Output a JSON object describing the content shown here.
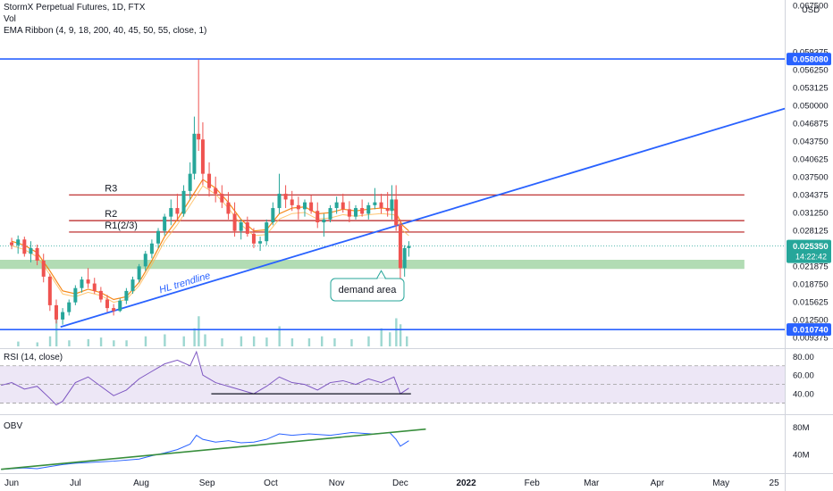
{
  "header": {
    "symbol_line": "StormX Perpetual Futures, 1D, FTX",
    "vol_label": "Vol",
    "ema_label": "EMA Ribbon (4, 9, 18, 200, 40, 45, 50, 55, close, 1)"
  },
  "colors": {
    "blue_line": "#2962ff",
    "resistance": "#b71c1c",
    "demand_zone": "#a5d6a7",
    "candle_up": "#26a69a",
    "candle_down": "#ef5350",
    "ema": "#f57c00",
    "rsi_line": "#7e57c2",
    "rsi_band": "#ede7f6",
    "obv_line": "#2962ff",
    "obv_trend": "#388e3c",
    "demand_box": "#26a69a",
    "axis_text": "#131722"
  },
  "icons": [
    "callout-pointer"
  ],
  "chart_data": [
    {
      "type": "candlestick",
      "price_axis_ticks": [
        "0.067500",
        "0.059375",
        "0.056250",
        "0.053125",
        "0.050000",
        "0.046875",
        "0.043750",
        "0.040625",
        "0.037500",
        "0.034375",
        "0.031250",
        "0.028125",
        "0.021875",
        "0.018750",
        "0.015625",
        "0.012500",
        "0.009375"
      ],
      "price_axis_unit": "USD",
      "ylim": [
        0.0078,
        0.0684
      ],
      "time_axis_labels": [
        "Jun",
        "Jul",
        "Aug",
        "Sep",
        "Oct",
        "Nov",
        "Dec",
        "2022",
        "Feb",
        "Mar",
        "Apr",
        "May",
        "25"
      ],
      "time_axis_positions": [
        0,
        30,
        61,
        92,
        122,
        153,
        183,
        214,
        245,
        273,
        304,
        334,
        359
      ],
      "xlim": [
        -5.5,
        364
      ],
      "current_price": "0.025350",
      "countdown": "14:22:42",
      "levels": [
        {
          "label": "0.058080",
          "price": 0.05808,
          "style": "blue"
        },
        {
          "label": "0.010740",
          "price": 0.01074,
          "style": "blue"
        }
      ],
      "resistance_lines": [
        {
          "label": "R3",
          "price": 0.0343,
          "x_start": 27,
          "x_end": 345
        },
        {
          "label": "R2",
          "price": 0.0298,
          "x_start": 27,
          "x_end": 345
        },
        {
          "label": "R1(2/3)",
          "price": 0.0278,
          "x_start": 27,
          "x_end": 345
        }
      ],
      "demand_zone": {
        "price_low": 0.02135,
        "price_high": 0.02295,
        "x_start": -5.5,
        "x_end": 345
      },
      "demand_label": "demand area",
      "trendline": {
        "label": "HL trendline",
        "points": [
          [
            23,
            0.0112
          ],
          [
            364,
            0.0494
          ]
        ]
      },
      "ohlc": [
        [
          0,
          0.026,
          0.0268,
          0.0248,
          0.0255
        ],
        [
          3,
          0.0255,
          0.0272,
          0.024,
          0.0265
        ],
        [
          6,
          0.0265,
          0.027,
          0.0235,
          0.024
        ],
        [
          9,
          0.024,
          0.0262,
          0.0225,
          0.025
        ],
        [
          12,
          0.025,
          0.0256,
          0.022,
          0.0228
        ],
        [
          15,
          0.0228,
          0.024,
          0.019,
          0.02
        ],
        [
          18,
          0.02,
          0.0205,
          0.014,
          0.015
        ],
        [
          21,
          0.015,
          0.016,
          0.0118,
          0.0125
        ],
        [
          24,
          0.0125,
          0.0145,
          0.0116,
          0.0138
        ],
        [
          27,
          0.0138,
          0.016,
          0.0132,
          0.0155
        ],
        [
          30,
          0.0155,
          0.0185,
          0.015,
          0.018
        ],
        [
          33,
          0.018,
          0.02,
          0.0172,
          0.0195
        ],
        [
          36,
          0.0195,
          0.0215,
          0.018,
          0.0188
        ],
        [
          39,
          0.0188,
          0.0198,
          0.017,
          0.0175
        ],
        [
          42,
          0.0175,
          0.0182,
          0.0155,
          0.016
        ],
        [
          45,
          0.016,
          0.0168,
          0.0138,
          0.0145
        ],
        [
          48,
          0.0145,
          0.0152,
          0.0132,
          0.014
        ],
        [
          51,
          0.014,
          0.0162,
          0.0138,
          0.0158
        ],
        [
          54,
          0.0158,
          0.018,
          0.0152,
          0.0175
        ],
        [
          57,
          0.0175,
          0.02,
          0.017,
          0.0195
        ],
        [
          60,
          0.0195,
          0.0222,
          0.019,
          0.0218
        ],
        [
          63,
          0.0218,
          0.0245,
          0.021,
          0.024
        ],
        [
          66,
          0.024,
          0.0265,
          0.0232,
          0.0258
        ],
        [
          69,
          0.0258,
          0.0285,
          0.025,
          0.028
        ],
        [
          72,
          0.028,
          0.031,
          0.0272,
          0.0305
        ],
        [
          75,
          0.0305,
          0.0335,
          0.029,
          0.032
        ],
        [
          78,
          0.032,
          0.0345,
          0.03,
          0.031
        ],
        [
          81,
          0.031,
          0.036,
          0.0305,
          0.035
        ],
        [
          84,
          0.035,
          0.04,
          0.0335,
          0.038
        ],
        [
          86,
          0.038,
          0.048,
          0.037,
          0.045
        ],
        [
          88,
          0.045,
          0.058,
          0.042,
          0.044
        ],
        [
          90,
          0.044,
          0.047,
          0.036,
          0.038
        ],
        [
          93,
          0.038,
          0.04,
          0.034,
          0.0355
        ],
        [
          96,
          0.0355,
          0.0375,
          0.033,
          0.0345
        ],
        [
          99,
          0.0345,
          0.036,
          0.032,
          0.033
        ],
        [
          102,
          0.033,
          0.0348,
          0.03,
          0.031
        ],
        [
          105,
          0.031,
          0.033,
          0.027,
          0.028
        ],
        [
          108,
          0.028,
          0.03,
          0.0265,
          0.0295
        ],
        [
          111,
          0.0295,
          0.0305,
          0.027,
          0.0275
        ],
        [
          114,
          0.0275,
          0.0285,
          0.025,
          0.0258
        ],
        [
          117,
          0.0258,
          0.027,
          0.0245,
          0.0262
        ],
        [
          120,
          0.0262,
          0.03,
          0.0255,
          0.0295
        ],
        [
          123,
          0.0295,
          0.033,
          0.029,
          0.032
        ],
        [
          126,
          0.032,
          0.038,
          0.031,
          0.0345
        ],
        [
          129,
          0.0345,
          0.036,
          0.032,
          0.0335
        ],
        [
          132,
          0.0335,
          0.035,
          0.0315,
          0.0325
        ],
        [
          135,
          0.0325,
          0.034,
          0.03,
          0.0318
        ],
        [
          138,
          0.0318,
          0.0335,
          0.0305,
          0.033
        ],
        [
          141,
          0.033,
          0.0342,
          0.031,
          0.0315
        ],
        [
          144,
          0.0315,
          0.033,
          0.0285,
          0.0295
        ],
        [
          147,
          0.0295,
          0.031,
          0.027,
          0.03
        ],
        [
          150,
          0.03,
          0.0325,
          0.0295,
          0.032
        ],
        [
          153,
          0.032,
          0.034,
          0.031,
          0.033
        ],
        [
          156,
          0.033,
          0.0345,
          0.0312,
          0.0318
        ],
        [
          159,
          0.0318,
          0.0332,
          0.0295,
          0.0305
        ],
        [
          162,
          0.0305,
          0.0325,
          0.03,
          0.032
        ],
        [
          165,
          0.032,
          0.0335,
          0.0305,
          0.031
        ],
        [
          168,
          0.031,
          0.033,
          0.03,
          0.0325
        ],
        [
          171,
          0.0325,
          0.0355,
          0.0318,
          0.033
        ],
        [
          174,
          0.033,
          0.0345,
          0.031,
          0.032
        ],
        [
          177,
          0.032,
          0.0348,
          0.0305,
          0.0315
        ],
        [
          179,
          0.0315,
          0.036,
          0.03,
          0.0335
        ],
        [
          181,
          0.0335,
          0.036,
          0.028,
          0.029
        ],
        [
          183,
          0.029,
          0.03,
          0.0185,
          0.0215
        ],
        [
          185,
          0.0215,
          0.0255,
          0.02,
          0.025
        ],
        [
          187,
          0.025,
          0.0262,
          0.0235,
          0.02535
        ]
      ],
      "ema": [
        [
          0,
          0.0262
        ],
        [
          6,
          0.0255
        ],
        [
          12,
          0.0242
        ],
        [
          18,
          0.021
        ],
        [
          24,
          0.0175
        ],
        [
          30,
          0.017
        ],
        [
          36,
          0.0178
        ],
        [
          42,
          0.0172
        ],
        [
          48,
          0.016
        ],
        [
          54,
          0.0165
        ],
        [
          60,
          0.019
        ],
        [
          66,
          0.0228
        ],
        [
          72,
          0.027
        ],
        [
          78,
          0.03
        ],
        [
          84,
          0.0335
        ],
        [
          90,
          0.037
        ],
        [
          96,
          0.0355
        ],
        [
          102,
          0.033
        ],
        [
          108,
          0.03
        ],
        [
          114,
          0.028
        ],
        [
          120,
          0.0282
        ],
        [
          126,
          0.031
        ],
        [
          132,
          0.032
        ],
        [
          138,
          0.0322
        ],
        [
          144,
          0.031
        ],
        [
          150,
          0.0312
        ],
        [
          156,
          0.0318
        ],
        [
          162,
          0.0315
        ],
        [
          168,
          0.0318
        ],
        [
          174,
          0.032
        ],
        [
          180,
          0.0318
        ],
        [
          184,
          0.029
        ],
        [
          187,
          0.028
        ]
      ],
      "volume_ratio": [
        [
          3,
          0.12
        ],
        [
          12,
          0.1
        ],
        [
          18,
          0.25
        ],
        [
          21,
          0.7
        ],
        [
          27,
          0.15
        ],
        [
          36,
          0.18
        ],
        [
          42,
          0.22
        ],
        [
          48,
          0.15
        ],
        [
          54,
          0.15
        ],
        [
          63,
          0.25
        ],
        [
          72,
          0.3
        ],
        [
          81,
          0.25
        ],
        [
          86,
          0.45
        ],
        [
          88,
          0.75
        ],
        [
          91,
          0.3
        ],
        [
          99,
          0.2
        ],
        [
          108,
          0.25
        ],
        [
          114,
          0.25
        ],
        [
          120,
          0.22
        ],
        [
          126,
          0.5
        ],
        [
          132,
          0.2
        ],
        [
          140,
          0.2
        ],
        [
          146,
          0.25
        ],
        [
          152,
          0.2
        ],
        [
          160,
          0.18
        ],
        [
          168,
          0.25
        ],
        [
          174,
          0.45
        ],
        [
          178,
          0.35
        ],
        [
          181,
          0.7
        ],
        [
          183,
          0.55
        ],
        [
          186,
          0.25
        ]
      ]
    },
    {
      "type": "line",
      "title": "RSI (14, close)",
      "y_ticks": [
        "80.00",
        "60.00",
        "40.00"
      ],
      "ylim": [
        20,
        86
      ],
      "band": [
        30,
        70
      ],
      "support_y": 40,
      "support_x": [
        94,
        188
      ],
      "points": [
        [
          -5,
          49
        ],
        [
          0,
          52
        ],
        [
          6,
          45
        ],
        [
          12,
          48
        ],
        [
          18,
          35
        ],
        [
          21,
          28
        ],
        [
          24,
          32
        ],
        [
          30,
          52
        ],
        [
          36,
          58
        ],
        [
          42,
          48
        ],
        [
          48,
          38
        ],
        [
          54,
          44
        ],
        [
          60,
          56
        ],
        [
          66,
          64
        ],
        [
          72,
          72
        ],
        [
          78,
          76
        ],
        [
          84,
          70
        ],
        [
          87,
          85
        ],
        [
          90,
          60
        ],
        [
          96,
          52
        ],
        [
          102,
          48
        ],
        [
          108,
          44
        ],
        [
          114,
          40
        ],
        [
          120,
          48
        ],
        [
          126,
          58
        ],
        [
          132,
          52
        ],
        [
          138,
          50
        ],
        [
          144,
          44
        ],
        [
          150,
          52
        ],
        [
          156,
          54
        ],
        [
          162,
          50
        ],
        [
          168,
          56
        ],
        [
          174,
          52
        ],
        [
          180,
          58
        ],
        [
          183,
          40
        ],
        [
          187,
          46
        ]
      ]
    },
    {
      "type": "line",
      "title": "OBV",
      "y_ticks": [
        "80M",
        "40M"
      ],
      "ylim": [
        15,
        95
      ],
      "trend": [
        [
          -5,
          18
        ],
        [
          195,
          77
        ]
      ],
      "points": [
        [
          -5,
          18
        ],
        [
          6,
          20
        ],
        [
          12,
          19
        ],
        [
          18,
          22
        ],
        [
          24,
          25
        ],
        [
          30,
          27
        ],
        [
          36,
          28
        ],
        [
          48,
          30
        ],
        [
          60,
          33
        ],
        [
          66,
          38
        ],
        [
          72,
          42
        ],
        [
          78,
          47
        ],
        [
          84,
          55
        ],
        [
          87,
          68
        ],
        [
          90,
          62
        ],
        [
          96,
          58
        ],
        [
          102,
          60
        ],
        [
          108,
          57
        ],
        [
          114,
          58
        ],
        [
          120,
          62
        ],
        [
          126,
          70
        ],
        [
          132,
          68
        ],
        [
          140,
          70
        ],
        [
          150,
          68
        ],
        [
          160,
          72
        ],
        [
          170,
          70
        ],
        [
          178,
          72
        ],
        [
          181,
          62
        ],
        [
          183,
          52
        ],
        [
          187,
          60
        ]
      ]
    }
  ]
}
